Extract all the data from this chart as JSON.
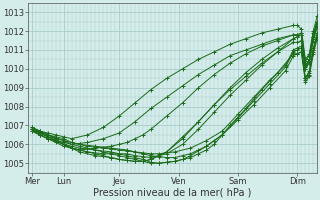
{
  "xlabel": "Pression niveau de la mer( hPa )",
  "bg_color": "#d4ecea",
  "grid_color": "#a8cccc",
  "line_color": "#1a6b1a",
  "marker_color": "#1a6b1a",
  "ylim": [
    1004.5,
    1013.5
  ],
  "yticks": [
    1005,
    1006,
    1007,
    1008,
    1009,
    1010,
    1011,
    1012,
    1013
  ],
  "day_labels": [
    "Mer",
    "Lun",
    "Jeu",
    "Ven",
    "Sam",
    "Dim"
  ],
  "day_positions": [
    0,
    8,
    22,
    37,
    52,
    67
  ],
  "xlim": [
    -1,
    72
  ],
  "series": [
    {
      "x": [
        0,
        2,
        4,
        6,
        8,
        10,
        14,
        18,
        22,
        26,
        30,
        34,
        38,
        42,
        46,
        50,
        54,
        58,
        62,
        66,
        67,
        68,
        69,
        70,
        71,
        72
      ],
      "y": [
        1006.8,
        1006.7,
        1006.6,
        1006.5,
        1006.4,
        1006.3,
        1006.5,
        1006.9,
        1007.5,
        1008.2,
        1008.9,
        1009.5,
        1010.0,
        1010.5,
        1010.9,
        1011.3,
        1011.6,
        1011.9,
        1012.1,
        1012.3,
        1012.3,
        1012.1,
        1010.5,
        1010.8,
        1012.0,
        1012.8
      ]
    },
    {
      "x": [
        0,
        2,
        4,
        6,
        8,
        10,
        14,
        18,
        22,
        26,
        30,
        34,
        38,
        42,
        46,
        50,
        54,
        58,
        62,
        66,
        67,
        68,
        69,
        70,
        71,
        72
      ],
      "y": [
        1006.8,
        1006.65,
        1006.5,
        1006.35,
        1006.2,
        1006.0,
        1006.1,
        1006.3,
        1006.6,
        1007.2,
        1007.9,
        1008.5,
        1009.1,
        1009.7,
        1010.2,
        1010.7,
        1011.0,
        1011.3,
        1011.6,
        1011.8,
        1011.8,
        1011.9,
        1010.4,
        1010.7,
        1011.9,
        1012.5
      ]
    },
    {
      "x": [
        0,
        2,
        4,
        6,
        8,
        12,
        16,
        20,
        22,
        24,
        26,
        28,
        30,
        34,
        38,
        42,
        46,
        50,
        54,
        58,
        62,
        66,
        67,
        68,
        69,
        70,
        71,
        72
      ],
      "y": [
        1006.7,
        1006.5,
        1006.3,
        1006.1,
        1005.9,
        1005.7,
        1005.8,
        1005.9,
        1006.0,
        1006.1,
        1006.3,
        1006.5,
        1006.8,
        1007.5,
        1008.2,
        1009.0,
        1009.7,
        1010.3,
        1010.8,
        1011.2,
        1011.5,
        1011.8,
        1011.8,
        1011.9,
        1010.2,
        1010.5,
        1011.7,
        1012.4
      ]
    },
    {
      "x": [
        0,
        2,
        4,
        6,
        8,
        10,
        12,
        14,
        16,
        18,
        20,
        22,
        24,
        26,
        28,
        30,
        32,
        34,
        38,
        42,
        46,
        50,
        54,
        58,
        62,
        66,
        67,
        68,
        69,
        70,
        71,
        72
      ],
      "y": [
        1006.8,
        1006.6,
        1006.4,
        1006.2,
        1006.0,
        1005.8,
        1005.7,
        1005.6,
        1005.5,
        1005.4,
        1005.3,
        1005.2,
        1005.15,
        1005.1,
        1005.1,
        1005.2,
        1005.4,
        1005.6,
        1006.4,
        1007.2,
        1008.1,
        1008.9,
        1009.6,
        1010.3,
        1010.9,
        1011.4,
        1011.4,
        1011.5,
        1010.0,
        1010.3,
        1011.5,
        1012.2
      ]
    },
    {
      "x": [
        0,
        2,
        4,
        8,
        10,
        12,
        16,
        20,
        22,
        24,
        26,
        28,
        30,
        32,
        34,
        36,
        38,
        40,
        42,
        44,
        46,
        50,
        54,
        58,
        62,
        66,
        67,
        68,
        69,
        70,
        71,
        72
      ],
      "y": [
        1006.7,
        1006.5,
        1006.3,
        1006.0,
        1005.9,
        1005.8,
        1005.7,
        1005.6,
        1005.5,
        1005.4,
        1005.3,
        1005.2,
        1005.05,
        1005.0,
        1005.05,
        1005.1,
        1005.2,
        1005.3,
        1005.5,
        1005.7,
        1006.0,
        1007.0,
        1007.9,
        1008.9,
        1009.8,
        1010.8,
        1010.8,
        1010.9,
        1009.5,
        1009.8,
        1011.0,
        1011.8
      ]
    },
    {
      "x": [
        0,
        2,
        4,
        8,
        12,
        14,
        16,
        18,
        20,
        22,
        24,
        26,
        28,
        30,
        32,
        34,
        36,
        38,
        40,
        44,
        48,
        52,
        56,
        60,
        64,
        66,
        67,
        68,
        69,
        70,
        71,
        72
      ],
      "y": [
        1006.8,
        1006.5,
        1006.3,
        1006.1,
        1005.9,
        1005.8,
        1005.7,
        1005.6,
        1005.5,
        1005.4,
        1005.3,
        1005.2,
        1005.1,
        1005.0,
        1005.0,
        1005.05,
        1005.1,
        1005.2,
        1005.4,
        1005.9,
        1006.5,
        1007.3,
        1008.1,
        1009.0,
        1009.9,
        1010.7,
        1010.8,
        1010.9,
        1009.3,
        1009.6,
        1010.8,
        1011.6
      ]
    },
    {
      "x": [
        0,
        2,
        4,
        8,
        12,
        16,
        20,
        24,
        26,
        28,
        30,
        32,
        34,
        36,
        38,
        40,
        42,
        44,
        46,
        48,
        52,
        56,
        60,
        64,
        66,
        67,
        68,
        69,
        70,
        71,
        72
      ],
      "y": [
        1006.8,
        1006.6,
        1006.4,
        1006.2,
        1006.0,
        1005.9,
        1005.8,
        1005.7,
        1005.6,
        1005.5,
        1005.4,
        1005.35,
        1005.3,
        1005.3,
        1005.4,
        1005.5,
        1005.7,
        1005.9,
        1006.2,
        1006.5,
        1007.4,
        1008.3,
        1009.2,
        1010.1,
        1010.9,
        1011.0,
        1011.1,
        1009.4,
        1009.7,
        1010.9,
        1011.7
      ]
    },
    {
      "x": [
        0,
        2,
        4,
        8,
        10,
        12,
        14,
        16,
        18,
        20,
        22,
        24,
        26,
        28,
        30,
        32,
        36,
        40,
        44,
        48,
        52,
        56,
        60,
        64,
        66,
        67,
        68,
        69,
        70,
        71,
        72
      ],
      "y": [
        1006.9,
        1006.7,
        1006.5,
        1006.3,
        1006.1,
        1006.0,
        1005.9,
        1005.85,
        1005.8,
        1005.75,
        1005.7,
        1005.65,
        1005.6,
        1005.55,
        1005.5,
        1005.5,
        1005.6,
        1005.8,
        1006.2,
        1006.7,
        1007.6,
        1008.5,
        1009.4,
        1010.2,
        1011.0,
        1011.1,
        1011.2,
        1009.5,
        1009.9,
        1011.1,
        1011.9
      ]
    },
    {
      "x": [
        0,
        2,
        4,
        6,
        8,
        10,
        14,
        18,
        22,
        24,
        26,
        28,
        30,
        34,
        38,
        42,
        46,
        50,
        54,
        58,
        62,
        66,
        67,
        68,
        69,
        70,
        71,
        72
      ],
      "y": [
        1006.8,
        1006.6,
        1006.4,
        1006.2,
        1006.0,
        1005.8,
        1005.6,
        1005.5,
        1005.5,
        1005.5,
        1005.4,
        1005.35,
        1005.3,
        1005.5,
        1006.0,
        1006.8,
        1007.7,
        1008.6,
        1009.4,
        1010.2,
        1010.9,
        1011.6,
        1011.7,
        1011.8,
        1010.0,
        1010.4,
        1011.6,
        1012.4
      ]
    },
    {
      "x": [
        0,
        2,
        4,
        6,
        8,
        10,
        12,
        16,
        20,
        22,
        24,
        26,
        28,
        30,
        34,
        38,
        42,
        46,
        50,
        54,
        58,
        62,
        66,
        67,
        68,
        69,
        70,
        71,
        72
      ],
      "y": [
        1006.9,
        1006.7,
        1006.5,
        1006.3,
        1006.0,
        1005.8,
        1005.6,
        1005.4,
        1005.3,
        1005.2,
        1005.15,
        1005.1,
        1005.1,
        1005.2,
        1005.6,
        1006.3,
        1007.2,
        1008.1,
        1009.0,
        1009.8,
        1010.5,
        1011.1,
        1011.6,
        1011.7,
        1011.8,
        1010.1,
        1010.5,
        1011.7,
        1012.5
      ]
    }
  ]
}
